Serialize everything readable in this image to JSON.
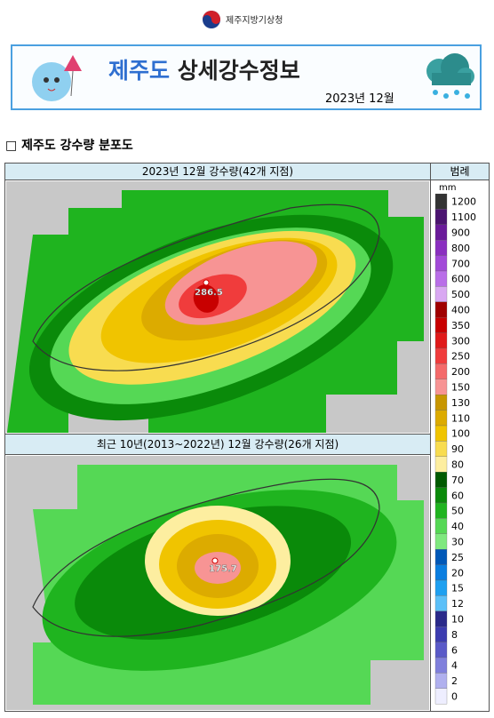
{
  "header": {
    "agency": "제주지방기상청"
  },
  "banner": {
    "title_region": "제주도",
    "title_main": "상세강수정보",
    "period": "2023년 12월"
  },
  "section": {
    "title": "□ 제주도 강수량 분포도"
  },
  "maps": [
    {
      "title": "2023년 12월 강수량(42개 지점)",
      "max_label": "286.5"
    },
    {
      "title": "최근 10년(2013~2022년) 12월 강수량(26개 지점)",
      "max_label": "175.7"
    }
  ],
  "legend": {
    "title": "범례",
    "unit": "mm",
    "levels": [
      {
        "label": 1200,
        "color": "#333333"
      },
      {
        "label": 1100,
        "color": "#4b1470"
      },
      {
        "label": 900,
        "color": "#6a1b9a"
      },
      {
        "label": 800,
        "color": "#8a2fc0"
      },
      {
        "label": 700,
        "color": "#a24ad8"
      },
      {
        "label": 600,
        "color": "#b96ee8"
      },
      {
        "label": 500,
        "color": "#d9a8f2"
      },
      {
        "label": 400,
        "color": "#a00000"
      },
      {
        "label": 350,
        "color": "#c80000"
      },
      {
        "label": 300,
        "color": "#e01a1a"
      },
      {
        "label": 250,
        "color": "#f03c3c"
      },
      {
        "label": 200,
        "color": "#f46a6a"
      },
      {
        "label": 150,
        "color": "#f79494"
      },
      {
        "label": 130,
        "color": "#c89600"
      },
      {
        "label": 110,
        "color": "#dcab00"
      },
      {
        "label": 100,
        "color": "#f0c400"
      },
      {
        "label": 90,
        "color": "#f8dc50"
      },
      {
        "label": 80,
        "color": "#fdeea0"
      },
      {
        "label": 70,
        "color": "#005a00"
      },
      {
        "label": 60,
        "color": "#0a8a0a"
      },
      {
        "label": 50,
        "color": "#1fb41f"
      },
      {
        "label": 40,
        "color": "#55d855"
      },
      {
        "label": 30,
        "color": "#7fe87f"
      },
      {
        "label": 25,
        "color": "#0058b8"
      },
      {
        "label": 20,
        "color": "#0a7ee0"
      },
      {
        "label": 15,
        "color": "#1ea0f0"
      },
      {
        "label": 12,
        "color": "#5cc0f8"
      },
      {
        "label": 10,
        "color": "#2a2a8a"
      },
      {
        "label": 8,
        "color": "#3c3cb0"
      },
      {
        "label": 6,
        "color": "#5a5ac8"
      },
      {
        "label": 4,
        "color": "#8080dc"
      },
      {
        "label": 2,
        "color": "#b0b0ee"
      },
      {
        "label": 0,
        "color": "#eeeeff"
      }
    ]
  }
}
